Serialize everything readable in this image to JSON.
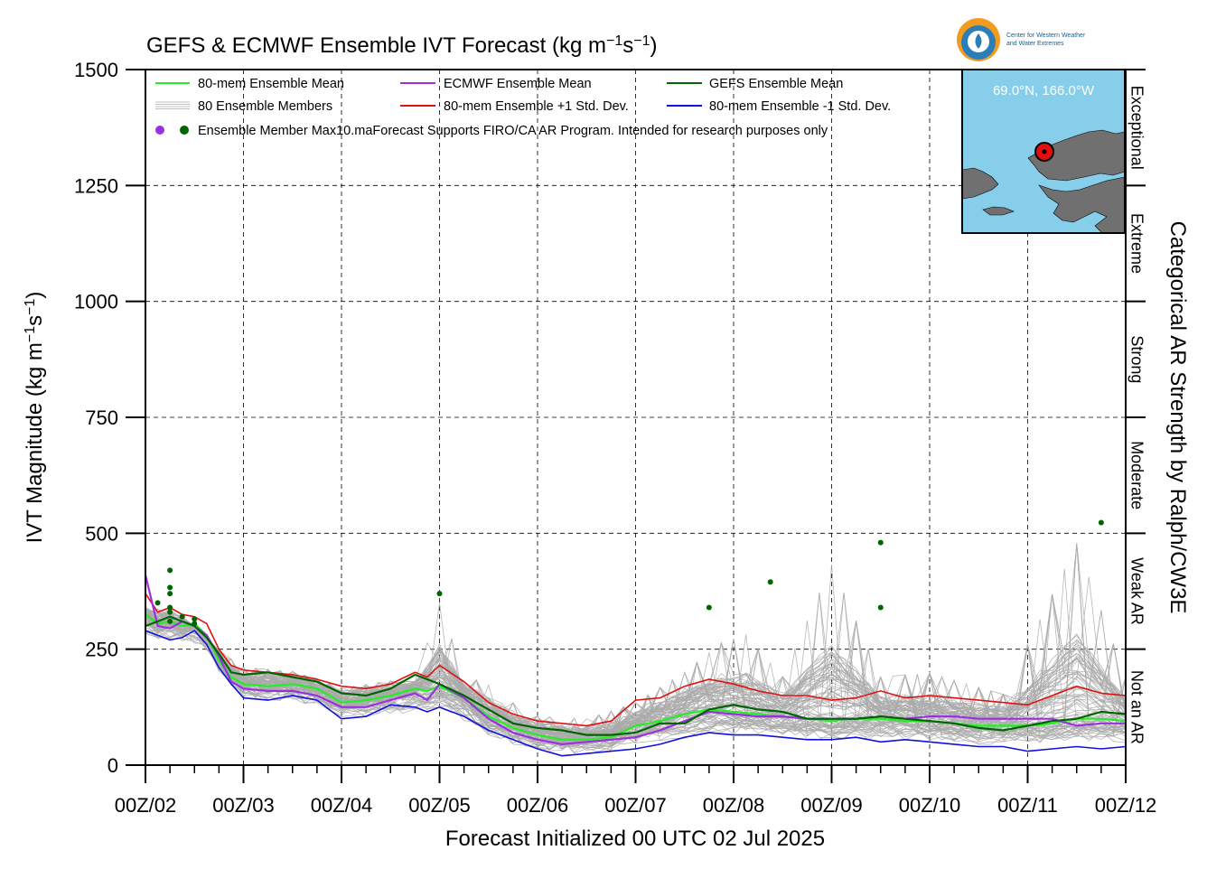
{
  "title_main": "GEFS & ECMWF Ensemble IVT Forecast (kg m",
  "title_exp1": "−1",
  "title_mid": "s",
  "title_exp2": "−1",
  "title_end": ")",
  "logo": {
    "line1": "Center for Western Weather",
    "line2": "and Water Extremes"
  },
  "location_label": "69.0°N, 166.0°W",
  "legend": {
    "ens_mean": "80-mem Ensemble Mean",
    "ecmwf_mean": "ECMWF Ensemble Mean",
    "gefs_mean": "GEFS Ensemble Mean",
    "members": "80 Ensemble Members",
    "plus_sd": "80-mem Ensemble +1 Std. Dev.",
    "minus_sd": "80-mem Ensemble -1 Std. Dev.",
    "max_note": "Ensemble Member Max10.maForecast Supports FIRO/CA AR Program. Intended for research purposes only"
  },
  "colors": {
    "ens_mean": "#22ee22",
    "ecmwf_mean": "#9b30e0",
    "gefs_mean": "#006400",
    "plus_sd": "#e01010",
    "minus_sd": "#1010e0",
    "members": "#aaaaaa",
    "ocean": "#87ceeb",
    "land": "#707070"
  },
  "chart_data": {
    "type": "line",
    "xlabel": "Forecast Initialized 00 UTC 02 Jul 2025",
    "ylabel_main": "IVT Magnitude (kg m",
    "ylabel_exp1": "−1",
    "ylabel_mid": "s",
    "ylabel_exp2": "−1",
    "ylabel_end": ")",
    "right_label": "Categorical AR Strength by Ralph/CW3E",
    "xlim": [
      0,
      240
    ],
    "ylim": [
      0,
      1500
    ],
    "grid": true,
    "legend_position": "top-left",
    "x_ticks": [
      {
        "hour": 0,
        "label": "00Z/02"
      },
      {
        "hour": 24,
        "label": "00Z/03"
      },
      {
        "hour": 48,
        "label": "00Z/04"
      },
      {
        "hour": 72,
        "label": "00Z/05"
      },
      {
        "hour": 96,
        "label": "00Z/06"
      },
      {
        "hour": 120,
        "label": "00Z/07"
      },
      {
        "hour": 144,
        "label": "00Z/08"
      },
      {
        "hour": 168,
        "label": "00Z/09"
      },
      {
        "hour": 192,
        "label": "00Z/10"
      },
      {
        "hour": 216,
        "label": "00Z/11"
      },
      {
        "hour": 240,
        "label": "00Z/12"
      }
    ],
    "y_ticks": [
      0,
      250,
      500,
      750,
      1000,
      1250,
      1500
    ],
    "categories": [
      {
        "label": "Not an AR",
        "range": [
          0,
          250
        ]
      },
      {
        "label": "Weak AR",
        "range": [
          250,
          500
        ]
      },
      {
        "label": "Moderate",
        "range": [
          500,
          750
        ]
      },
      {
        "label": "Strong",
        "range": [
          750,
          1000
        ]
      },
      {
        "label": "Extreme",
        "range": [
          1000,
          1250
        ]
      },
      {
        "label": "Exceptional",
        "range": [
          1250,
          1500
        ]
      }
    ],
    "series": [
      {
        "key": "members_hi",
        "x": [
          0,
          6,
          12,
          18,
          24,
          36,
          48,
          60,
          66,
          72,
          78,
          84,
          90,
          96,
          108,
          120,
          132,
          141,
          147,
          156,
          168,
          180,
          192,
          210,
          228,
          240
        ],
        "y": [
          340,
          340,
          300,
          250,
          215,
          205,
          170,
          185,
          180,
          370,
          200,
          180,
          140,
          110,
          105,
          140,
          210,
          280,
          300,
          200,
          470,
          200,
          210,
          160,
          520,
          200
        ]
      },
      {
        "key": "members_lo",
        "x": [
          0,
          6,
          12,
          18,
          24,
          36,
          48,
          60,
          72,
          84,
          96,
          108,
          120,
          132,
          144,
          168,
          192,
          216,
          240
        ],
        "y": [
          250,
          250,
          240,
          200,
          140,
          120,
          85,
          80,
          85,
          40,
          20,
          15,
          25,
          20,
          30,
          30,
          25,
          20,
          15
        ]
      },
      {
        "key": "plus_sd",
        "name": "80-mem Ensemble +1 Std. Dev.",
        "x": [
          0,
          3,
          6,
          9,
          12,
          15,
          18,
          21,
          24,
          30,
          36,
          42,
          48,
          54,
          60,
          66,
          69,
          72,
          78,
          84,
          90,
          96,
          102,
          108,
          114,
          120,
          126,
          132,
          138,
          144,
          150,
          156,
          162,
          168,
          174,
          180,
          186,
          192,
          198,
          204,
          210,
          216,
          222,
          228,
          234,
          240
        ],
        "y": [
          370,
          330,
          340,
          325,
          320,
          305,
          250,
          215,
          205,
          200,
          195,
          185,
          170,
          165,
          175,
          200,
          190,
          215,
          180,
          135,
          110,
          95,
          90,
          85,
          95,
          140,
          145,
          170,
          185,
          175,
          160,
          150,
          150,
          140,
          145,
          160,
          145,
          150,
          145,
          140,
          135,
          130,
          150,
          170,
          155,
          150
        ]
      },
      {
        "key": "minus_sd",
        "name": "80-mem Ensemble -1 Std. Dev.",
        "x": [
          0,
          3,
          6,
          9,
          12,
          15,
          18,
          21,
          24,
          30,
          36,
          42,
          48,
          54,
          60,
          66,
          69,
          72,
          78,
          84,
          90,
          96,
          102,
          108,
          114,
          120,
          126,
          132,
          138,
          144,
          150,
          156,
          162,
          168,
          174,
          180,
          186,
          192,
          198,
          204,
          210,
          216,
          222,
          228,
          234,
          240
        ],
        "y": [
          290,
          280,
          270,
          275,
          290,
          260,
          210,
          175,
          145,
          140,
          150,
          140,
          100,
          105,
          130,
          125,
          115,
          125,
          105,
          75,
          55,
          35,
          20,
          25,
          30,
          35,
          45,
          60,
          70,
          65,
          65,
          60,
          55,
          55,
          60,
          50,
          55,
          50,
          45,
          40,
          40,
          30,
          35,
          40,
          35,
          40
        ]
      },
      {
        "key": "ens_mean",
        "name": "80-mem Ensemble Mean",
        "x": [
          0,
          3,
          6,
          9,
          12,
          15,
          18,
          21,
          24,
          30,
          36,
          42,
          48,
          54,
          60,
          66,
          69,
          72,
          78,
          84,
          90,
          96,
          102,
          108,
          114,
          120,
          126,
          132,
          138,
          144,
          150,
          156,
          162,
          168,
          174,
          180,
          186,
          192,
          198,
          204,
          210,
          216,
          222,
          228,
          234,
          240
        ],
        "y": [
          325,
          305,
          310,
          300,
          305,
          280,
          225,
          190,
          175,
          170,
          175,
          165,
          135,
          140,
          150,
          165,
          160,
          170,
          145,
          105,
          80,
          65,
          55,
          55,
          60,
          85,
          95,
          110,
          120,
          115,
          110,
          105,
          100,
          95,
          100,
          100,
          95,
          95,
          90,
          85,
          85,
          85,
          90,
          100,
          100,
          95
        ]
      },
      {
        "key": "ecmwf_mean",
        "name": "ECMWF Ensemble Mean",
        "x": [
          0,
          3,
          6,
          9,
          12,
          15,
          18,
          21,
          24,
          30,
          36,
          42,
          48,
          54,
          60,
          66,
          69,
          72,
          78,
          84,
          90,
          96,
          102,
          108,
          114,
          120,
          126,
          132,
          138,
          144,
          150,
          156,
          162,
          168,
          174,
          180,
          186,
          192,
          198,
          204,
          210,
          216,
          222,
          228,
          234,
          240
        ],
        "y": [
          410,
          300,
          295,
          310,
          300,
          280,
          235,
          180,
          165,
          160,
          160,
          150,
          125,
          125,
          140,
          155,
          140,
          175,
          145,
          100,
          70,
          55,
          45,
          50,
          55,
          60,
          75,
          95,
          115,
          110,
          105,
          105,
          100,
          100,
          100,
          105,
          100,
          105,
          105,
          100,
          100,
          100,
          100,
          85,
          90,
          90
        ]
      },
      {
        "key": "gefs_mean",
        "name": "GEFS Ensemble Mean",
        "x": [
          0,
          3,
          6,
          9,
          12,
          15,
          18,
          21,
          24,
          30,
          36,
          42,
          48,
          54,
          60,
          66,
          69,
          72,
          78,
          84,
          90,
          96,
          102,
          108,
          114,
          120,
          126,
          132,
          138,
          144,
          150,
          156,
          162,
          168,
          174,
          180,
          186,
          192,
          198,
          204,
          210,
          216,
          222,
          228,
          234,
          240
        ],
        "y": [
          300,
          310,
          320,
          310,
          300,
          275,
          240,
          200,
          195,
          200,
          190,
          180,
          155,
          150,
          165,
          195,
          185,
          175,
          150,
          120,
          90,
          80,
          75,
          65,
          65,
          70,
          90,
          90,
          120,
          130,
          120,
          115,
          100,
          100,
          100,
          105,
          100,
          95,
          90,
          80,
          75,
          85,
          95,
          100,
          115,
          110
        ]
      }
    ],
    "max_points_gefs": [
      {
        "x": 3,
        "y": 350
      },
      {
        "x": 6,
        "y": 420
      },
      {
        "x": 6,
        "y": 383
      },
      {
        "x": 6,
        "y": 370
      },
      {
        "x": 6,
        "y": 340
      },
      {
        "x": 6,
        "y": 330
      },
      {
        "x": 6,
        "y": 310
      },
      {
        "x": 9,
        "y": 320
      },
      {
        "x": 12,
        "y": 315
      },
      {
        "x": 12,
        "y": 305
      },
      {
        "x": 72,
        "y": 370
      },
      {
        "x": 138,
        "y": 340
      },
      {
        "x": 153,
        "y": 395
      },
      {
        "x": 180,
        "y": 480
      },
      {
        "x": 180,
        "y": 340
      },
      {
        "x": 234,
        "y": 523
      }
    ]
  }
}
